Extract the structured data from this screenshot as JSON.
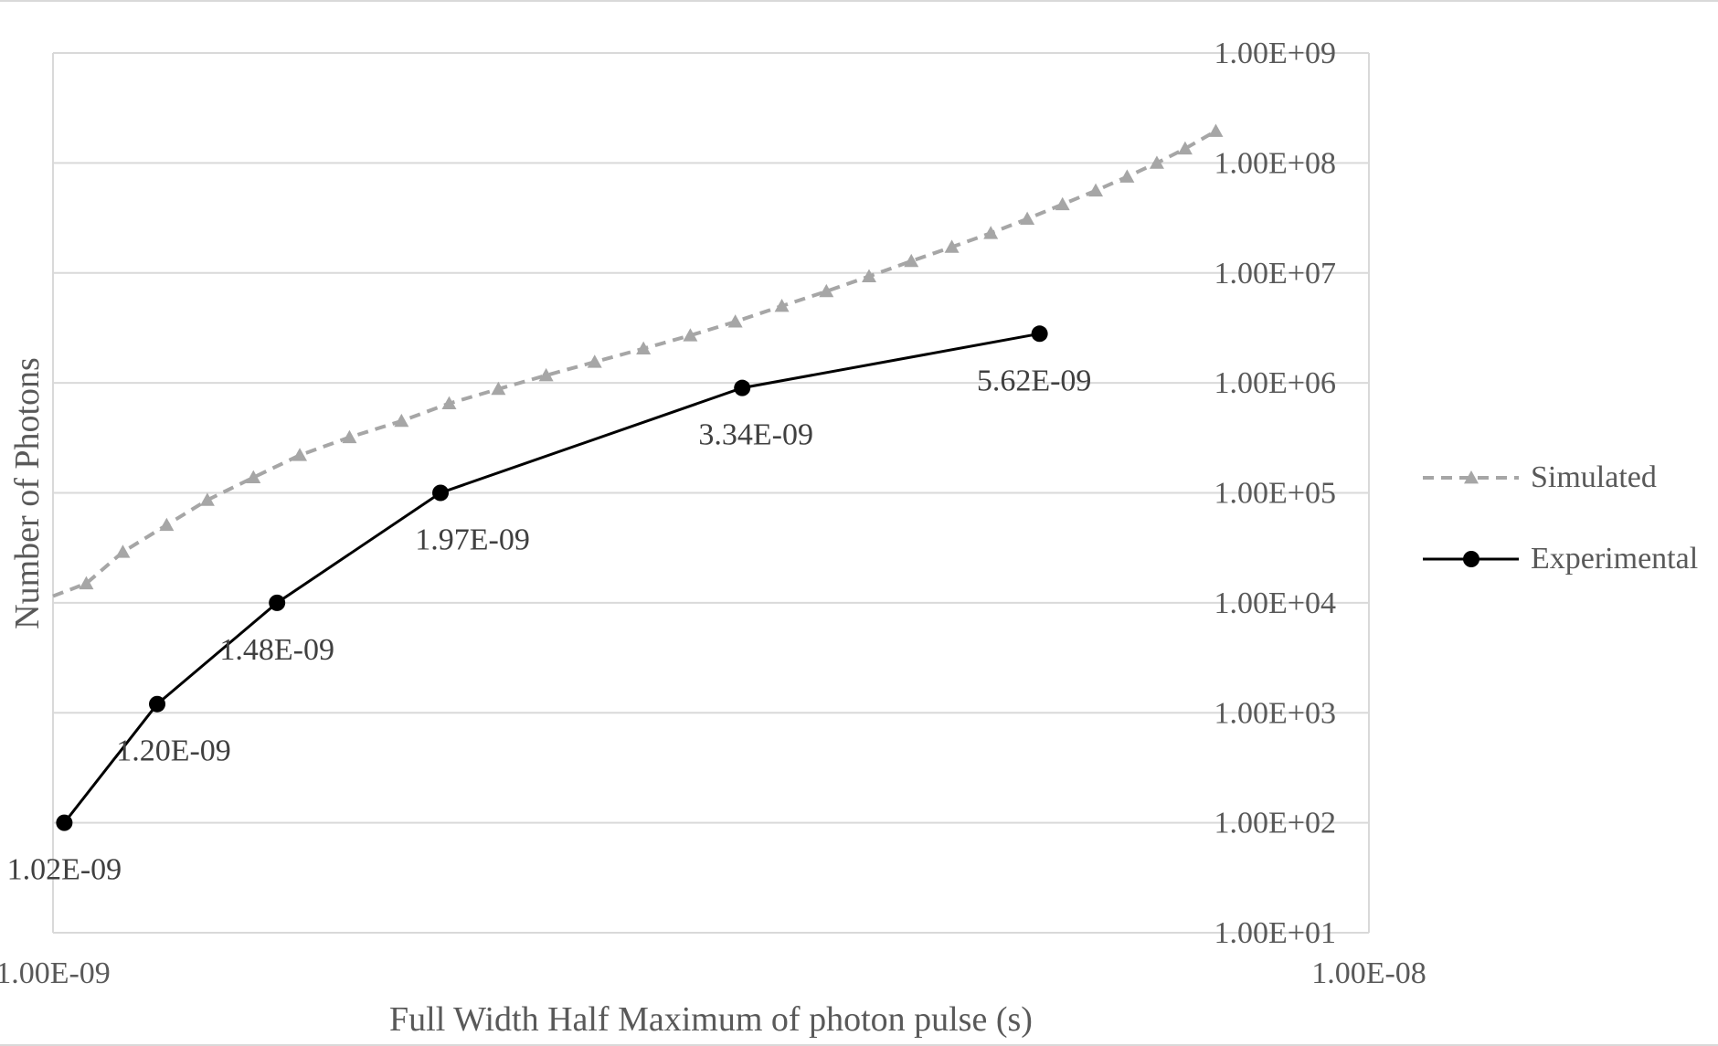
{
  "chart_data": {
    "type": "scatter",
    "x_scale": "log",
    "y_scale": "log",
    "xlabel": "Full Width Half Maximum of photon pulse (s)",
    "ylabel": "Number of Photons",
    "xlim": [
      1e-09,
      1e-08
    ],
    "ylim": [
      10,
      1000000000.0
    ],
    "x_ticks": [
      "1.00E-09",
      "1.00E-08"
    ],
    "y_ticks": [
      "1.00E+01",
      "1.00E+02",
      "1.00E+03",
      "1.00E+04",
      "1.00E+05",
      "1.00E+06",
      "1.00E+07",
      "1.00E+08",
      "1.00E+09"
    ],
    "grid": true,
    "legend_position": "right",
    "series": [
      {
        "name": "Simulated",
        "style": "dashed-triangle",
        "color": "#a6a6a6",
        "x": [
          1e-09,
          1.06e-09,
          1.13e-09,
          1.22e-09,
          1.31e-09,
          1.42e-09,
          1.54e-09,
          1.68e-09,
          1.84e-09,
          2e-09,
          2.18e-09,
          2.37e-09,
          2.58e-09,
          2.81e-09,
          3.05e-09,
          3.3e-09,
          3.58e-09,
          3.87e-09,
          4.17e-09,
          4.49e-09,
          4.82e-09,
          5.16e-09,
          5.5e-09,
          5.85e-09,
          6.2e-09,
          6.55e-09,
          6.9e-09,
          7.25e-09,
          7.65e-09
        ],
        "y": [
          11500.0,
          15000.0,
          29000.0,
          51000.0,
          86000.0,
          138000.0,
          220000.0,
          320000.0,
          450000.0,
          650000.0,
          880000.0,
          1170000.0,
          1550000.0,
          2050000.0,
          2700000.0,
          3600000.0,
          5000000.0,
          6800000.0,
          9300000.0,
          12800000.0,
          17200000.0,
          23000000.0,
          31000000.0,
          42000000.0,
          56000000.0,
          75000000.0,
          100000000.0,
          135000000.0,
          195000000.0
        ]
      },
      {
        "name": "Experimental",
        "style": "solid-circle",
        "color": "#000000",
        "x": [
          1.02e-09,
          1.2e-09,
          1.48e-09,
          1.97e-09,
          3.34e-09,
          5.62e-09
        ],
        "y": [
          100,
          1200,
          10000,
          100000,
          900000,
          2800000
        ],
        "labels": [
          "1.02E-09",
          "1.20E-09",
          "1.48E-09",
          "1.97E-09",
          "3.34E-09",
          "5.62E-09"
        ]
      }
    ]
  }
}
